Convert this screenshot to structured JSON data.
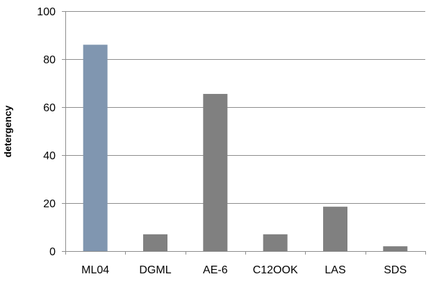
{
  "chart_data": {
    "type": "bar",
    "title": "",
    "xlabel": "",
    "ylabel": "detergency",
    "categories": [
      "ML04",
      "DGML",
      "AE-6",
      "C12OOK",
      "LAS",
      "SDS"
    ],
    "values": [
      86,
      7,
      65.5,
      7,
      18.5,
      2
    ],
    "colors": [
      "#8096b0",
      "#808080",
      "#808080",
      "#808080",
      "#808080",
      "#808080"
    ],
    "ylim": [
      0,
      100
    ],
    "yticks": [
      0,
      20,
      40,
      60,
      80,
      100
    ],
    "grid": true,
    "legend": "none"
  }
}
